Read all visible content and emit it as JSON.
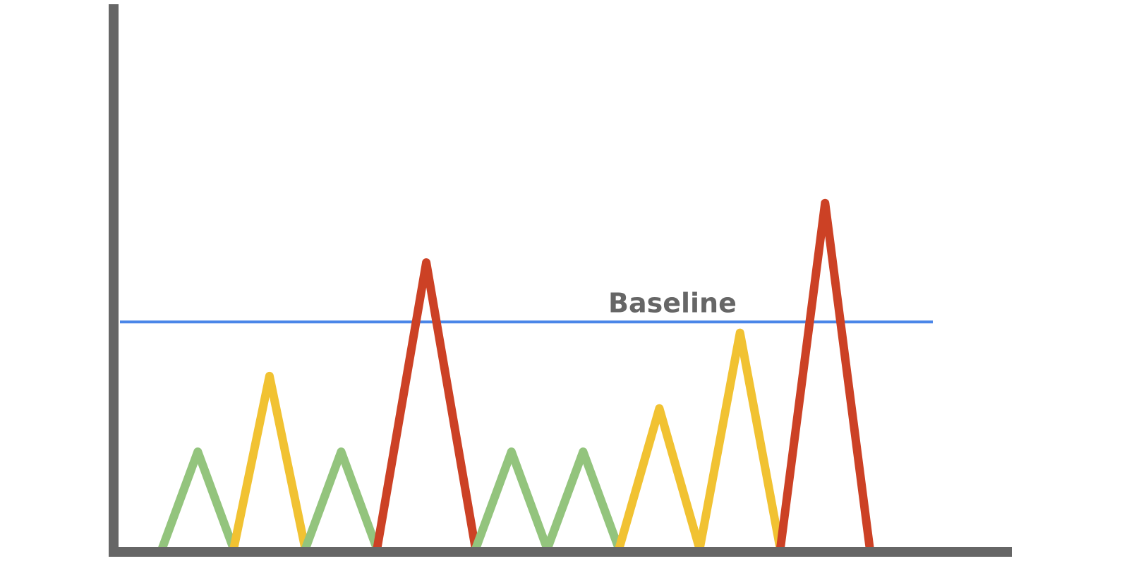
{
  "colors": {
    "axis": "#666666",
    "baseline": "#4a86e8",
    "green": "#93c47d",
    "yellow": "#f1c232",
    "red": "#cc4125"
  },
  "chart_data": {
    "type": "line",
    "title": "",
    "xlabel": "",
    "ylabel": "",
    "xlim": [
      0,
      100
    ],
    "ylim": [
      0,
      100
    ],
    "grid": false,
    "legend": "none",
    "baseline": {
      "label": "Baseline",
      "value": 42
    },
    "peaks": [
      {
        "color": "green",
        "x": [
          5.0,
          9.0,
          13.0
        ],
        "y": [
          0,
          18,
          0
        ]
      },
      {
        "color": "yellow",
        "x": [
          13.0,
          17.0,
          21.0
        ],
        "y": [
          0,
          32,
          0
        ]
      },
      {
        "color": "green",
        "x": [
          21.0,
          25.0,
          29.0
        ],
        "y": [
          0,
          18,
          0
        ]
      },
      {
        "color": "red",
        "x": [
          29.0,
          34.5,
          40.0
        ],
        "y": [
          0,
          53,
          0
        ]
      },
      {
        "color": "green",
        "x": [
          40.0,
          44.0,
          48.0
        ],
        "y": [
          0,
          18,
          0
        ]
      },
      {
        "color": "green",
        "x": [
          48.0,
          52.0,
          56.0
        ],
        "y": [
          0,
          18,
          0
        ]
      },
      {
        "color": "yellow",
        "x": [
          56.0,
          60.5,
          65.0
        ],
        "y": [
          0,
          26,
          0
        ]
      },
      {
        "color": "yellow",
        "x": [
          65.0,
          69.5,
          74.0
        ],
        "y": [
          0,
          40,
          0
        ]
      },
      {
        "color": "red",
        "x": [
          74.0,
          79.0,
          84.0
        ],
        "y": [
          0,
          64,
          0
        ]
      }
    ]
  }
}
